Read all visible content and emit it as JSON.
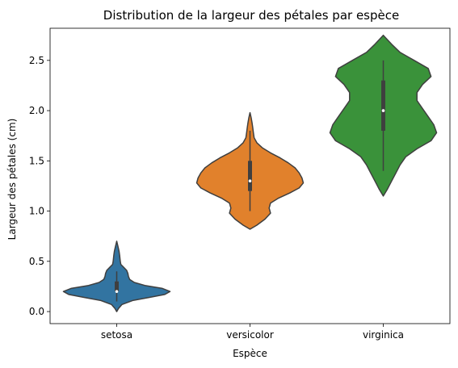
{
  "chart_data": {
    "type": "violin",
    "title": "Distribution de la largeur des pétales par espèce",
    "xlabel": "Espèce",
    "ylabel": "Largeur des pétales (cm)",
    "categories": [
      "setosa",
      "versicolor",
      "virginica"
    ],
    "ylim": [
      -0.12,
      2.82
    ],
    "yticks": [
      0.0,
      0.5,
      1.0,
      1.5,
      2.0,
      2.5
    ],
    "ytick_labels": [
      "0.0",
      "0.5",
      "1.0",
      "1.5",
      "2.0",
      "2.5"
    ],
    "grid": false,
    "series": [
      {
        "category": "setosa",
        "color": "#3274a1",
        "min": 0.1,
        "q1": 0.2,
        "median": 0.2,
        "q3": 0.3,
        "max": 0.4,
        "kde_range": [
          0.0,
          0.7
        ],
        "profile": [
          [
            0.0,
            0.0
          ],
          [
            0.03,
            0.03
          ],
          [
            0.07,
            0.09
          ],
          [
            0.11,
            0.27
          ],
          [
            0.14,
            0.55
          ],
          [
            0.17,
            0.82
          ],
          [
            0.2,
            0.91
          ],
          [
            0.23,
            0.78
          ],
          [
            0.26,
            0.48
          ],
          [
            0.29,
            0.3
          ],
          [
            0.32,
            0.22
          ],
          [
            0.35,
            0.2
          ],
          [
            0.38,
            0.19
          ],
          [
            0.41,
            0.17
          ],
          [
            0.44,
            0.12
          ],
          [
            0.47,
            0.07
          ],
          [
            0.5,
            0.06
          ],
          [
            0.53,
            0.055
          ],
          [
            0.56,
            0.05
          ],
          [
            0.6,
            0.04
          ],
          [
            0.64,
            0.025
          ],
          [
            0.67,
            0.012
          ],
          [
            0.7,
            0.0
          ]
        ]
      },
      {
        "category": "versicolor",
        "color": "#e1812c",
        "min": 1.0,
        "q1": 1.2,
        "median": 1.3,
        "q3": 1.5,
        "max": 1.8,
        "kde_range": [
          0.82,
          1.98
        ],
        "profile": [
          [
            0.82,
            0.0
          ],
          [
            0.86,
            0.05
          ],
          [
            0.92,
            0.11
          ],
          [
            0.98,
            0.15
          ],
          [
            1.03,
            0.14
          ],
          [
            1.08,
            0.15
          ],
          [
            1.13,
            0.21
          ],
          [
            1.18,
            0.29
          ],
          [
            1.23,
            0.36
          ],
          [
            1.28,
            0.39
          ],
          [
            1.33,
            0.38
          ],
          [
            1.38,
            0.36
          ],
          [
            1.43,
            0.33
          ],
          [
            1.48,
            0.28
          ],
          [
            1.53,
            0.22
          ],
          [
            1.58,
            0.15
          ],
          [
            1.63,
            0.09
          ],
          [
            1.68,
            0.05
          ],
          [
            1.73,
            0.03
          ],
          [
            1.78,
            0.025
          ],
          [
            1.83,
            0.02
          ],
          [
            1.88,
            0.015
          ],
          [
            1.93,
            0.008
          ],
          [
            1.98,
            0.0
          ]
        ]
      },
      {
        "category": "virginica",
        "color": "#3a923a",
        "min": 1.4,
        "q1": 1.8,
        "median": 2.0,
        "q3": 2.3,
        "max": 2.5,
        "kde_range": [
          1.15,
          2.75
        ],
        "profile": [
          [
            1.15,
            0.0
          ],
          [
            1.22,
            0.015
          ],
          [
            1.3,
            0.03
          ],
          [
            1.38,
            0.045
          ],
          [
            1.46,
            0.06
          ],
          [
            1.54,
            0.08
          ],
          [
            1.62,
            0.12
          ],
          [
            1.7,
            0.17
          ],
          [
            1.78,
            0.19
          ],
          [
            1.86,
            0.18
          ],
          [
            1.94,
            0.16
          ],
          [
            2.02,
            0.14
          ],
          [
            2.1,
            0.12
          ],
          [
            2.18,
            0.12
          ],
          [
            2.26,
            0.14
          ],
          [
            2.34,
            0.17
          ],
          [
            2.42,
            0.16
          ],
          [
            2.5,
            0.11
          ],
          [
            2.58,
            0.06
          ],
          [
            2.66,
            0.03
          ],
          [
            2.75,
            0.0
          ]
        ]
      }
    ]
  }
}
